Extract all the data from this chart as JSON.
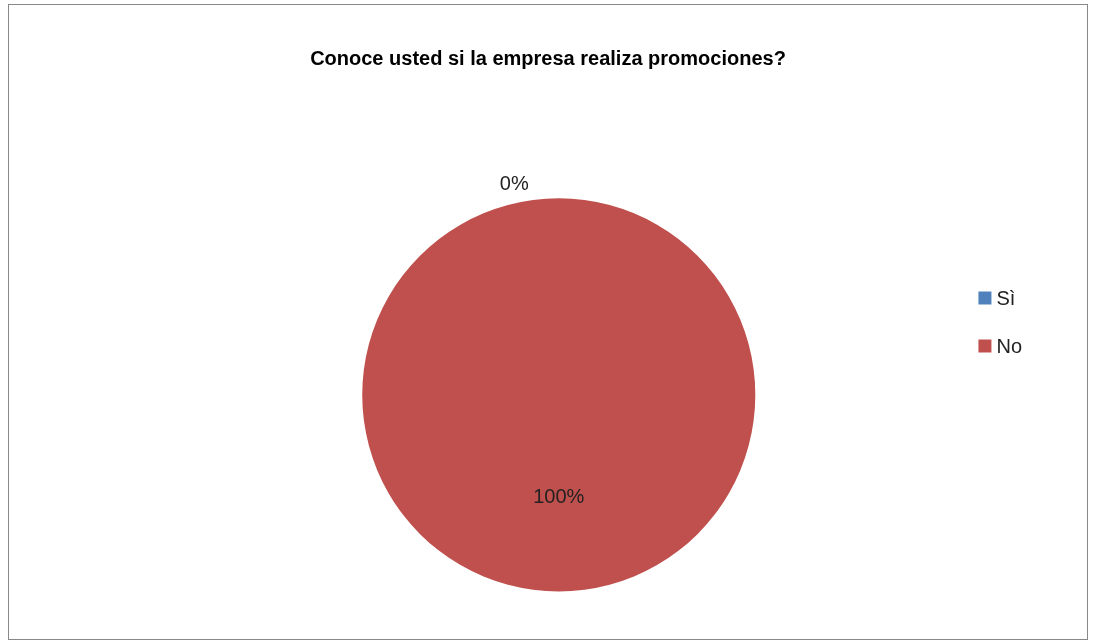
{
  "chart_data": {
    "type": "pie",
    "title": "Conoce usted si la empresa realiza promociones?",
    "categories": [
      "Sì",
      "No"
    ],
    "values": [
      0,
      100
    ],
    "value_labels": [
      "0%",
      "100%"
    ],
    "colors": [
      "#4f81bd",
      "#c0504d"
    ],
    "legend": "right"
  }
}
